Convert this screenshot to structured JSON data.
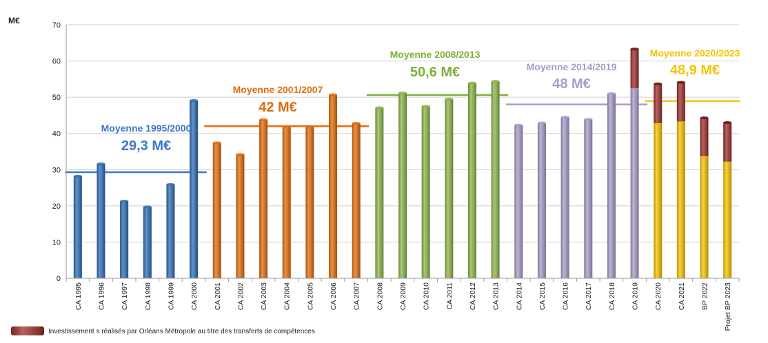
{
  "chart_data": {
    "type": "bar",
    "ylabel": "M€",
    "ylim": [
      0,
      70
    ],
    "yticks": [
      0,
      10,
      20,
      30,
      40,
      50,
      60,
      70
    ],
    "grid": true,
    "categories": [
      "CA 1995",
      "CA 1996",
      "CA 1997",
      "CA 1998",
      "CA 1999",
      "CA 2000",
      "CA 2001",
      "CA 2002",
      "CA 2003",
      "CA 2004",
      "CA  2005",
      "CA  2006",
      "CA  2007",
      "CA 2008",
      "CA 2009",
      "CA 2010",
      "CA 2011",
      "CA 2012",
      "CA 2013",
      "CA 2014",
      "CA 2015",
      "CA 2016",
      "CA 2017",
      "CA 2018",
      "CA 2019",
      "CA 2020",
      "CA 2021",
      "BP 2022",
      "Projet BP 2023"
    ],
    "values": [
      28.2,
      31.6,
      21.3,
      19.7,
      25.9,
      49.1,
      37.4,
      34.2,
      43.8,
      41.9,
      41.9,
      50.7,
      42.8,
      47.1,
      51.2,
      47.5,
      49.5,
      53.9,
      54.4,
      42.3,
      42.9,
      44.5,
      43.9,
      51.0,
      52.5,
      42.8,
      43.3,
      33.7,
      32.2
    ],
    "metropole_values": [
      0,
      0,
      0,
      0,
      0,
      0,
      0,
      0,
      0,
      0,
      0,
      0,
      0,
      0,
      0,
      0,
      0,
      0,
      0,
      0,
      0,
      0,
      0,
      0,
      10.8,
      10.9,
      10.8,
      10.6,
      10.8
    ],
    "bar_colors": [
      "#2e6db4",
      "#2e6db4",
      "#2e6db4",
      "#2e6db4",
      "#2e6db4",
      "#2e6db4",
      "#e46c0a",
      "#e46c0a",
      "#e46c0a",
      "#e46c0a",
      "#e46c0a",
      "#e46c0a",
      "#e46c0a",
      "#8db54a",
      "#8db54a",
      "#8db54a",
      "#8db54a",
      "#8db54a",
      "#8db54a",
      "#a99bc8",
      "#a99bc8",
      "#a99bc8",
      "#a99bc8",
      "#a99bc8",
      "#a99bc8",
      "#f5c400",
      "#f5c400",
      "#f5c400",
      "#f5c400"
    ],
    "stack_color": "#9b2e2a",
    "averages": [
      {
        "label": "Moyenne 1995/2000",
        "value_text": "29,3 M€",
        "value": 29.3,
        "from": 0,
        "to": 5,
        "color": "#3a78c8"
      },
      {
        "label": "Moyenne 2001/2007",
        "value_text": "42 M€",
        "value": 42,
        "from": 6,
        "to": 12,
        "color": "#e46c0a"
      },
      {
        "label": "Moyenne 2008/2013",
        "value_text": "50,6 M€",
        "value": 50.6,
        "from": 13,
        "to": 18,
        "color": "#7fae3a"
      },
      {
        "label": "Moyenne 2014/2019",
        "value_text": "48 M€",
        "value": 48,
        "from": 19,
        "to": 24,
        "color": "#a99bc8"
      },
      {
        "label": "Moyenne 2020/2023",
        "value_text": "48,9 M€",
        "value": 48.9,
        "from": 25,
        "to": 28,
        "color": "#f5c400"
      }
    ],
    "legend": {
      "label": "Investissement s réalisés par Orléans Métropole  au titre des transferts de compétences",
      "placement": "bottom-left"
    }
  }
}
